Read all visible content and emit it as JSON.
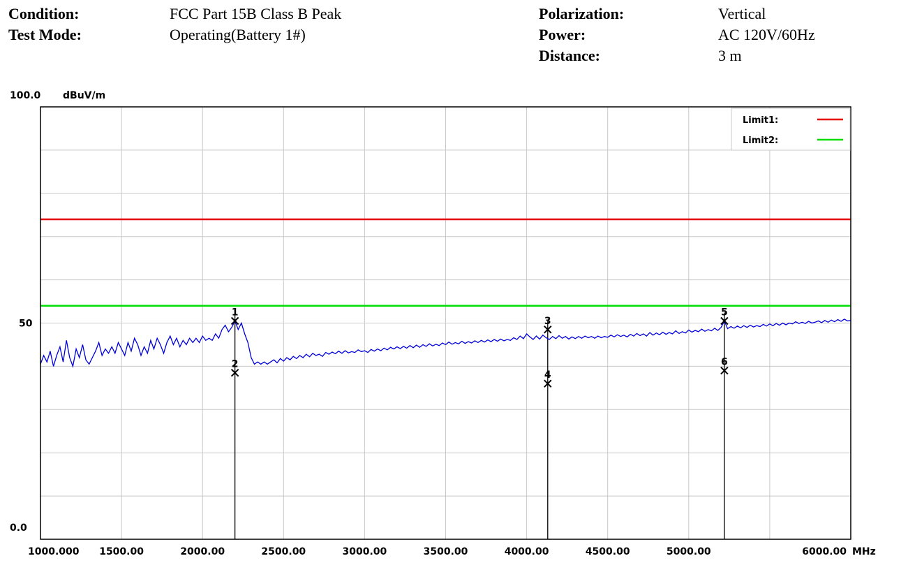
{
  "header": {
    "condition_label": "Condition:",
    "condition_value": "FCC Part 15B Class B Peak",
    "test_mode_label": "Test Mode:",
    "test_mode_value": "Operating(Battery 1#)",
    "polarization_label": "Polarization:",
    "polarization_value": "Vertical",
    "power_label": "Power:",
    "power_value": "AC 120V/60Hz",
    "distance_label": "Distance:",
    "distance_value": "3 m"
  },
  "chart_data": {
    "type": "line",
    "title": "",
    "xlabel": "MHz",
    "ylabel": "dBuV/m",
    "xlim": [
      1000,
      6000
    ],
    "ylim": [
      0,
      100
    ],
    "grid": true,
    "y_tick_labels": [
      "100.0",
      "50",
      "0.0"
    ],
    "y_tick_values": [
      100,
      50,
      0
    ],
    "x_tick_labels": [
      "1000.000",
      "1500.00",
      "2000.00",
      "2500.00",
      "3000.00",
      "3500.00",
      "4000.00",
      "4500.00",
      "5000.00",
      "6000.00"
    ],
    "x_tick_values": [
      1000,
      1500,
      2000,
      2500,
      3000,
      3500,
      4000,
      4500,
      5000,
      6000
    ],
    "legend_position": "top-right",
    "limits": [
      {
        "name": "Limit1:",
        "value": 74,
        "color": "#e60000"
      },
      {
        "name": "Limit2:",
        "value": 54,
        "color": "#00dd00"
      }
    ],
    "trace": {
      "color": "#0000dd",
      "points": [
        [
          1000,
          40.5
        ],
        [
          1020,
          42.5
        ],
        [
          1040,
          41.0
        ],
        [
          1060,
          43.5
        ],
        [
          1080,
          40.0
        ],
        [
          1100,
          42.5
        ],
        [
          1120,
          44.5
        ],
        [
          1140,
          41.0
        ],
        [
          1160,
          46.0
        ],
        [
          1180,
          42.0
        ],
        [
          1200,
          40.0
        ],
        [
          1220,
          44.0
        ],
        [
          1240,
          42.0
        ],
        [
          1260,
          45.0
        ],
        [
          1280,
          41.5
        ],
        [
          1300,
          40.5
        ],
        [
          1320,
          42.0
        ],
        [
          1340,
          43.5
        ],
        [
          1360,
          45.5
        ],
        [
          1380,
          42.5
        ],
        [
          1400,
          44.0
        ],
        [
          1420,
          43.0
        ],
        [
          1440,
          44.5
        ],
        [
          1460,
          43.0
        ],
        [
          1480,
          45.5
        ],
        [
          1500,
          44.0
        ],
        [
          1520,
          42.5
        ],
        [
          1540,
          45.5
        ],
        [
          1560,
          43.5
        ],
        [
          1580,
          46.5
        ],
        [
          1600,
          45.0
        ],
        [
          1620,
          42.5
        ],
        [
          1640,
          44.5
        ],
        [
          1660,
          43.0
        ],
        [
          1680,
          46.0
        ],
        [
          1700,
          44.0
        ],
        [
          1720,
          46.5
        ],
        [
          1740,
          45.0
        ],
        [
          1760,
          43.0
        ],
        [
          1780,
          45.5
        ],
        [
          1800,
          47.0
        ],
        [
          1820,
          45.0
        ],
        [
          1840,
          46.5
        ],
        [
          1860,
          44.5
        ],
        [
          1880,
          46.0
        ],
        [
          1900,
          45.0
        ],
        [
          1920,
          46.5
        ],
        [
          1940,
          45.5
        ],
        [
          1960,
          46.5
        ],
        [
          1980,
          45.5
        ],
        [
          2000,
          47.0
        ],
        [
          2020,
          46.0
        ],
        [
          2040,
          46.5
        ],
        [
          2060,
          46.0
        ],
        [
          2080,
          47.5
        ],
        [
          2100,
          46.5
        ],
        [
          2120,
          48.5
        ],
        [
          2140,
          49.5
        ],
        [
          2160,
          48.0
        ],
        [
          2180,
          49.0
        ],
        [
          2200,
          50.5
        ],
        [
          2220,
          48.5
        ],
        [
          2240,
          50.0
        ],
        [
          2260,
          47.5
        ],
        [
          2280,
          45.5
        ],
        [
          2300,
          42.0
        ],
        [
          2320,
          40.5
        ],
        [
          2340,
          41.0
        ],
        [
          2360,
          40.5
        ],
        [
          2380,
          41.0
        ],
        [
          2400,
          40.5
        ],
        [
          2420,
          41.0
        ],
        [
          2440,
          41.5
        ],
        [
          2460,
          40.8
        ],
        [
          2480,
          41.8
        ],
        [
          2500,
          41.2
        ],
        [
          2520,
          42.0
        ],
        [
          2540,
          41.5
        ],
        [
          2560,
          42.3
        ],
        [
          2580,
          41.8
        ],
        [
          2600,
          42.5
        ],
        [
          2620,
          42.0
        ],
        [
          2640,
          42.8
        ],
        [
          2660,
          42.2
        ],
        [
          2680,
          43.0
        ],
        [
          2700,
          42.5
        ],
        [
          2720,
          42.8
        ],
        [
          2740,
          42.3
        ],
        [
          2760,
          43.2
        ],
        [
          2780,
          42.8
        ],
        [
          2800,
          43.3
        ],
        [
          2820,
          42.9
        ],
        [
          2840,
          43.5
        ],
        [
          2860,
          43.0
        ],
        [
          2880,
          43.6
        ],
        [
          2900,
          43.1
        ],
        [
          2920,
          43.4
        ],
        [
          2940,
          43.2
        ],
        [
          2960,
          43.8
        ],
        [
          2980,
          43.4
        ],
        [
          3000,
          43.6
        ],
        [
          3020,
          43.2
        ],
        [
          3040,
          43.9
        ],
        [
          3060,
          43.5
        ],
        [
          3080,
          44.0
        ],
        [
          3100,
          43.6
        ],
        [
          3120,
          44.2
        ],
        [
          3140,
          43.8
        ],
        [
          3160,
          44.4
        ],
        [
          3180,
          44.0
        ],
        [
          3200,
          44.5
        ],
        [
          3220,
          44.1
        ],
        [
          3240,
          44.6
        ],
        [
          3260,
          44.2
        ],
        [
          3280,
          44.8
        ],
        [
          3300,
          44.3
        ],
        [
          3320,
          44.9
        ],
        [
          3340,
          44.4
        ],
        [
          3360,
          45.0
        ],
        [
          3380,
          44.6
        ],
        [
          3400,
          45.2
        ],
        [
          3420,
          44.7
        ],
        [
          3440,
          45.1
        ],
        [
          3460,
          44.8
        ],
        [
          3480,
          45.4
        ],
        [
          3500,
          45.0
        ],
        [
          3520,
          45.6
        ],
        [
          3540,
          45.1
        ],
        [
          3560,
          45.5
        ],
        [
          3580,
          45.2
        ],
        [
          3600,
          45.8
        ],
        [
          3620,
          45.3
        ],
        [
          3640,
          45.7
        ],
        [
          3660,
          45.4
        ],
        [
          3680,
          45.9
        ],
        [
          3700,
          45.5
        ],
        [
          3720,
          46.0
        ],
        [
          3740,
          45.6
        ],
        [
          3760,
          46.1
        ],
        [
          3780,
          45.7
        ],
        [
          3800,
          46.2
        ],
        [
          3820,
          45.8
        ],
        [
          3840,
          46.3
        ],
        [
          3860,
          45.9
        ],
        [
          3880,
          46.2
        ],
        [
          3900,
          46.0
        ],
        [
          3920,
          46.6
        ],
        [
          3940,
          46.2
        ],
        [
          3960,
          47.0
        ],
        [
          3980,
          46.4
        ],
        [
          4000,
          47.5
        ],
        [
          4020,
          46.8
        ],
        [
          4040,
          46.2
        ],
        [
          4060,
          47.0
        ],
        [
          4080,
          46.3
        ],
        [
          4100,
          47.2
        ],
        [
          4120,
          46.6
        ],
        [
          4140,
          46.2
        ],
        [
          4160,
          46.9
        ],
        [
          4180,
          46.4
        ],
        [
          4200,
          47.1
        ],
        [
          4220,
          46.5
        ],
        [
          4240,
          46.9
        ],
        [
          4260,
          46.3
        ],
        [
          4280,
          46.8
        ],
        [
          4300,
          46.4
        ],
        [
          4320,
          46.9
        ],
        [
          4340,
          46.5
        ],
        [
          4360,
          47.0
        ],
        [
          4380,
          46.6
        ],
        [
          4400,
          46.9
        ],
        [
          4420,
          46.5
        ],
        [
          4440,
          47.0
        ],
        [
          4460,
          46.6
        ],
        [
          4480,
          46.9
        ],
        [
          4500,
          46.7
        ],
        [
          4520,
          47.2
        ],
        [
          4540,
          46.8
        ],
        [
          4560,
          47.3
        ],
        [
          4580,
          46.9
        ],
        [
          4600,
          47.2
        ],
        [
          4620,
          46.8
        ],
        [
          4640,
          47.4
        ],
        [
          4660,
          47.0
        ],
        [
          4680,
          47.6
        ],
        [
          4700,
          47.1
        ],
        [
          4720,
          47.5
        ],
        [
          4740,
          47.0
        ],
        [
          4760,
          47.8
        ],
        [
          4780,
          47.2
        ],
        [
          4800,
          47.7
        ],
        [
          4820,
          47.3
        ],
        [
          4840,
          47.9
        ],
        [
          4860,
          47.4
        ],
        [
          4880,
          47.8
        ],
        [
          4900,
          47.5
        ],
        [
          4920,
          48.2
        ],
        [
          4940,
          47.6
        ],
        [
          4960,
          48.0
        ],
        [
          4980,
          47.7
        ],
        [
          5000,
          48.4
        ],
        [
          5020,
          47.9
        ],
        [
          5040,
          48.3
        ],
        [
          5060,
          48.0
        ],
        [
          5080,
          48.6
        ],
        [
          5100,
          48.1
        ],
        [
          5120,
          48.5
        ],
        [
          5140,
          48.2
        ],
        [
          5160,
          48.8
        ],
        [
          5180,
          48.3
        ],
        [
          5200,
          49.0
        ],
        [
          5220,
          50.5
        ],
        [
          5240,
          48.7
        ],
        [
          5260,
          49.2
        ],
        [
          5280,
          48.8
        ],
        [
          5300,
          49.3
        ],
        [
          5320,
          48.9
        ],
        [
          5340,
          49.4
        ],
        [
          5360,
          49.0
        ],
        [
          5380,
          49.5
        ],
        [
          5400,
          49.1
        ],
        [
          5420,
          49.4
        ],
        [
          5440,
          49.2
        ],
        [
          5460,
          49.7
        ],
        [
          5480,
          49.3
        ],
        [
          5500,
          49.8
        ],
        [
          5520,
          49.4
        ],
        [
          5540,
          49.9
        ],
        [
          5560,
          49.5
        ],
        [
          5580,
          50.0
        ],
        [
          5600,
          49.6
        ],
        [
          5620,
          50.0
        ],
        [
          5640,
          49.8
        ],
        [
          5660,
          50.3
        ],
        [
          5680,
          49.9
        ],
        [
          5700,
          50.2
        ],
        [
          5720,
          49.9
        ],
        [
          5740,
          50.4
        ],
        [
          5760,
          50.0
        ],
        [
          5780,
          50.2
        ],
        [
          5800,
          50.5
        ],
        [
          5820,
          50.1
        ],
        [
          5840,
          50.6
        ],
        [
          5860,
          50.2
        ],
        [
          5880,
          50.7
        ],
        [
          5900,
          50.3
        ],
        [
          5920,
          50.8
        ],
        [
          5940,
          50.4
        ],
        [
          5960,
          50.9
        ],
        [
          5980,
          50.5
        ],
        [
          6000,
          50.6
        ]
      ]
    },
    "markers": [
      {
        "label": "1",
        "freq": 2200,
        "level": 50.5
      },
      {
        "label": "2",
        "freq": 2200,
        "level": 38.5
      },
      {
        "label": "3",
        "freq": 4130,
        "level": 48.5
      },
      {
        "label": "4",
        "freq": 4130,
        "level": 36.0
      },
      {
        "label": "5",
        "freq": 5220,
        "level": 50.5
      },
      {
        "label": "6",
        "freq": 5220,
        "level": 39.0
      }
    ]
  }
}
